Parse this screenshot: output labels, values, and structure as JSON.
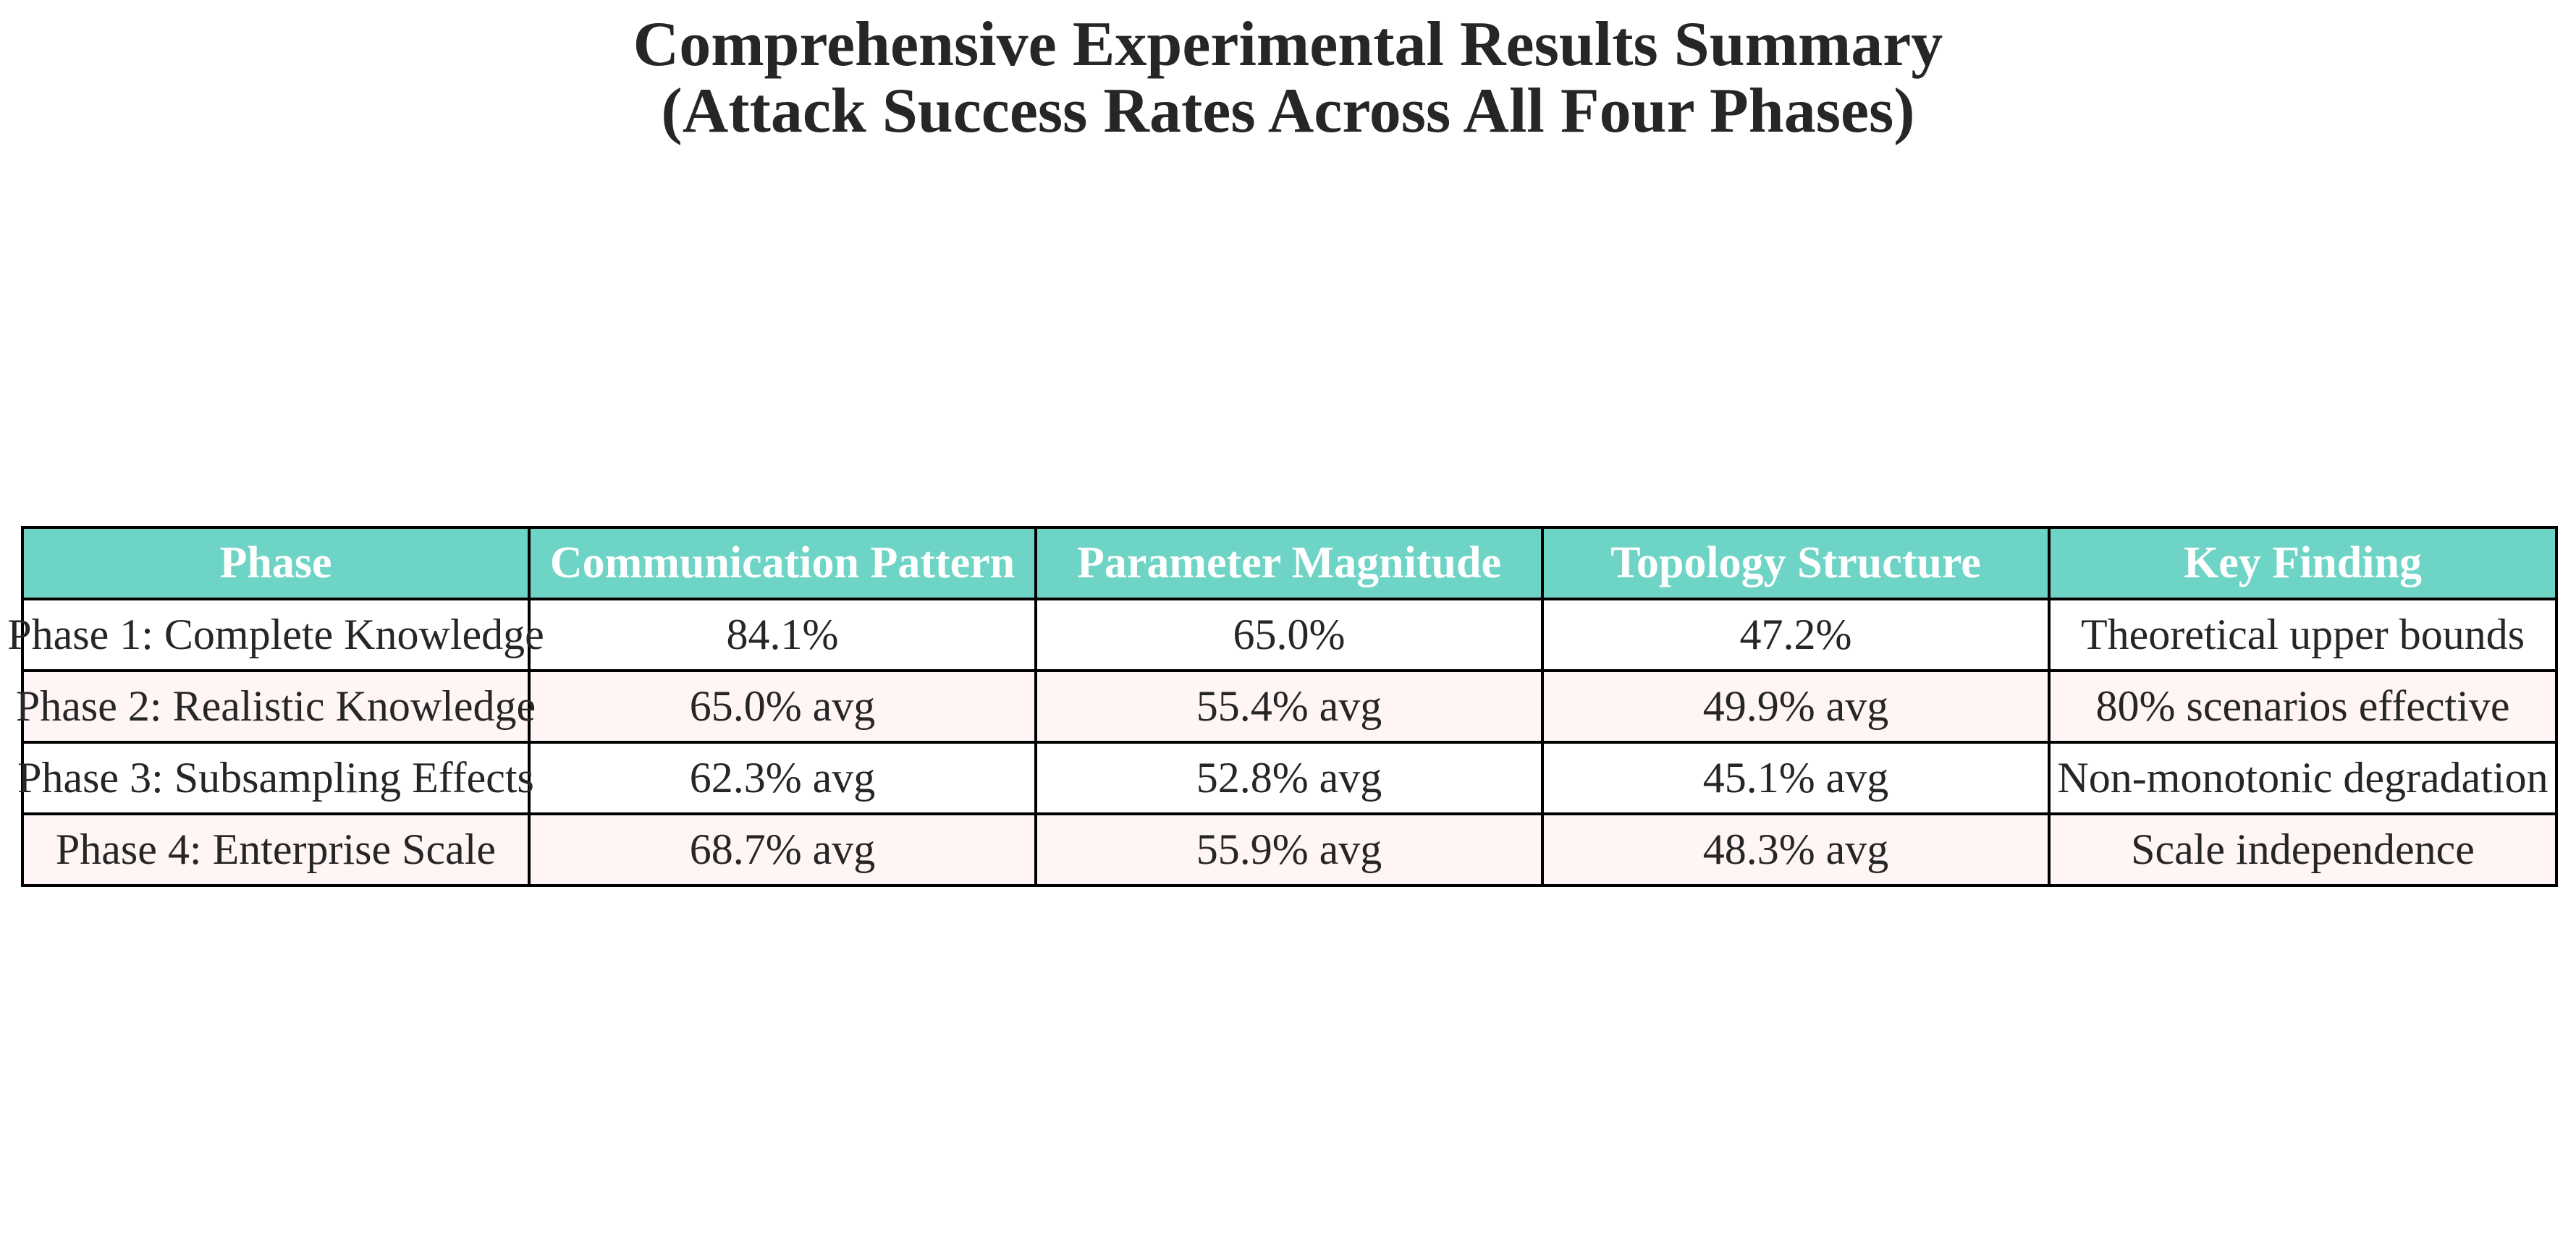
{
  "chart_data": {
    "type": "table",
    "title_line1": "Comprehensive Experimental Results Summary",
    "title_line2": "(Attack Success Rates Across All Four Phases)",
    "columns": [
      "Phase",
      "Communication Pattern",
      "Parameter Magnitude",
      "Topology Structure",
      "Key Finding"
    ],
    "rows": [
      [
        "Phase 1: Complete Knowledge",
        "84.1%",
        "65.0%",
        "47.2%",
        "Theoretical upper bounds"
      ],
      [
        "Phase 2: Realistic Knowledge",
        "65.0% avg",
        "55.4% avg",
        "49.9% avg",
        "80% scenarios effective"
      ],
      [
        "Phase 3: Subsampling Effects",
        "62.3% avg",
        "52.8% avg",
        "45.1% avg",
        "Non-monotonic degradation"
      ],
      [
        "Phase 4: Enterprise Scale",
        "68.7% avg",
        "55.9% avg",
        "48.3% avg",
        "Scale independence"
      ]
    ]
  },
  "colors": {
    "header_bg": "#6ed4c6",
    "header_text": "#ffffff",
    "alt_row_bg": "#fff5f4",
    "row_bg": "#ffffff",
    "border": "#000000"
  }
}
